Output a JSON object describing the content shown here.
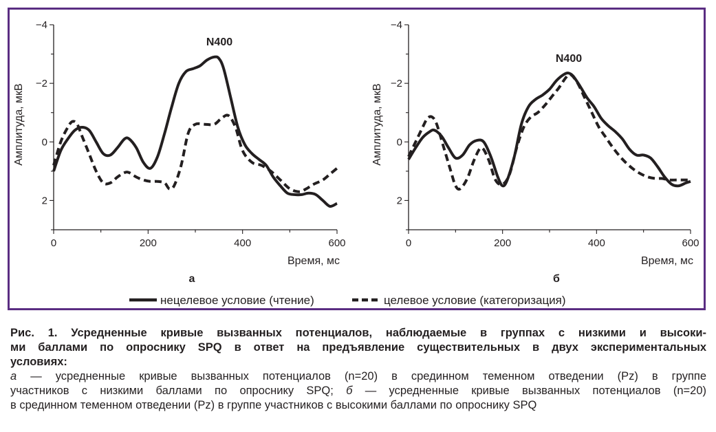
{
  "legend": {
    "solid_label": "нецелевое условие (чтение)",
    "dashed_label": "целевое условие (категоризация)"
  },
  "chart_data": [
    {
      "type": "line",
      "panel_label": "а",
      "annotation": "N400",
      "ylabel": "Амплитуда, мкВ",
      "xlabel": "Время, мс",
      "xlim": [
        0,
        600
      ],
      "ylim": [
        3,
        -4
      ],
      "y_inverted": true,
      "xticks": [
        "0",
        "200",
        "400",
        "600"
      ],
      "yticks": [
        "−4",
        "−2",
        "0",
        "2"
      ],
      "grid": false,
      "series": [
        {
          "style": "solid",
          "x": [
            0,
            15,
            30,
            45,
            60,
            75,
            90,
            105,
            120,
            135,
            150,
            160,
            175,
            190,
            205,
            220,
            235,
            250,
            265,
            280,
            295,
            310,
            325,
            340,
            350,
            360,
            375,
            390,
            405,
            420,
            435,
            450,
            465,
            480,
            495,
            510,
            525,
            540,
            555,
            570,
            585,
            600
          ],
          "y": [
            1.0,
            0.3,
            -0.1,
            -0.4,
            -0.5,
            -0.4,
            0.0,
            0.4,
            0.45,
            0.2,
            -0.1,
            -0.1,
            0.2,
            0.7,
            0.9,
            0.5,
            -0.3,
            -1.2,
            -2.0,
            -2.4,
            -2.5,
            -2.6,
            -2.8,
            -2.9,
            -2.85,
            -2.5,
            -1.5,
            -0.5,
            0.1,
            0.4,
            0.6,
            0.8,
            1.2,
            1.5,
            1.75,
            1.8,
            1.8,
            1.75,
            1.8,
            2.0,
            2.2,
            2.1
          ]
        },
        {
          "style": "dashed",
          "x": [
            0,
            15,
            30,
            40,
            50,
            60,
            75,
            90,
            105,
            120,
            135,
            150,
            160,
            175,
            190,
            205,
            220,
            235,
            245,
            255,
            270,
            285,
            300,
            320,
            340,
            355,
            370,
            385,
            400,
            420,
            440,
            460,
            480,
            500,
            520,
            535,
            550,
            570,
            585,
            600
          ],
          "y": [
            0.8,
            0.0,
            -0.5,
            -0.7,
            -0.6,
            -0.2,
            0.4,
            1.0,
            1.4,
            1.4,
            1.2,
            1.05,
            1.05,
            1.2,
            1.3,
            1.35,
            1.35,
            1.4,
            1.6,
            1.5,
            0.8,
            -0.3,
            -0.6,
            -0.6,
            -0.6,
            -0.8,
            -0.9,
            -0.5,
            0.3,
            0.7,
            0.8,
            1.0,
            1.3,
            1.6,
            1.7,
            1.6,
            1.45,
            1.3,
            1.1,
            0.9
          ]
        }
      ]
    },
    {
      "type": "line",
      "panel_label": "б",
      "annotation": "N400",
      "ylabel": "Амплитуда, мкВ",
      "xlabel": "Время, мс",
      "xlim": [
        0,
        600
      ],
      "ylim": [
        3,
        -4
      ],
      "y_inverted": true,
      "xticks": [
        "0",
        "200",
        "400",
        "600"
      ],
      "yticks": [
        "−4",
        "−2",
        "0",
        "2"
      ],
      "grid": false,
      "series": [
        {
          "style": "solid",
          "x": [
            0,
            15,
            30,
            45,
            55,
            70,
            85,
            100,
            115,
            130,
            145,
            160,
            175,
            190,
            200,
            210,
            225,
            240,
            255,
            270,
            285,
            300,
            315,
            330,
            340,
            350,
            365,
            380,
            395,
            410,
            425,
            440,
            455,
            470,
            485,
            500,
            515,
            530,
            545,
            560,
            575,
            590,
            600
          ],
          "y": [
            0.6,
            0.2,
            -0.15,
            -0.35,
            -0.4,
            -0.2,
            0.2,
            0.55,
            0.45,
            0.1,
            -0.05,
            0.0,
            0.5,
            1.2,
            1.5,
            1.3,
            0.5,
            -0.6,
            -1.2,
            -1.45,
            -1.6,
            -1.8,
            -2.1,
            -2.3,
            -2.35,
            -2.25,
            -1.9,
            -1.5,
            -1.2,
            -0.8,
            -0.55,
            -0.35,
            -0.1,
            0.25,
            0.45,
            0.45,
            0.55,
            0.85,
            1.2,
            1.45,
            1.5,
            1.4,
            1.35
          ]
        },
        {
          "style": "dashed",
          "x": [
            0,
            15,
            30,
            40,
            50,
            60,
            75,
            90,
            100,
            110,
            125,
            140,
            155,
            170,
            185,
            200,
            215,
            230,
            245,
            260,
            275,
            290,
            305,
            320,
            335,
            345,
            360,
            375,
            390,
            405,
            420,
            435,
            450,
            465,
            480,
            495,
            510,
            525,
            540,
            555,
            570,
            585,
            600
          ],
          "y": [
            0.5,
            0.0,
            -0.5,
            -0.8,
            -0.85,
            -0.6,
            0.2,
            1.0,
            1.5,
            1.6,
            1.25,
            0.6,
            0.2,
            0.6,
            1.3,
            1.45,
            1.1,
            0.2,
            -0.5,
            -0.85,
            -1.0,
            -1.25,
            -1.55,
            -1.85,
            -2.2,
            -2.3,
            -2.0,
            -1.5,
            -1.0,
            -0.5,
            -0.15,
            0.2,
            0.5,
            0.75,
            0.95,
            1.1,
            1.2,
            1.25,
            1.25,
            1.3,
            1.3,
            1.3,
            1.3
          ]
        }
      ]
    }
  ],
  "caption": {
    "bold_lines": [
      "Рис. 1. Усредненные кривые вызванных потенциалов, наблюдаемые в группах с низкими и высоки-",
      "ми баллами по опроснику SPQ в ответ на предъявление существительных в двух экспериментальных",
      "условиях:"
    ],
    "line1_italic": "а",
    "line1_text": " — усредненные кривые вызванных потенциалов (n=20) в срединном теменном отведении (Pz) в группе",
    "line2_text": "участников с низкими баллами по опроснику SPQ; ",
    "line2_italic": "б",
    "line2_rest": " — усредненные кривые вызванных потенциалов (n=20)",
    "line3_text": "в срединном теменном отведении (Pz) в группе участников с высокими баллами по опроснику SPQ"
  }
}
